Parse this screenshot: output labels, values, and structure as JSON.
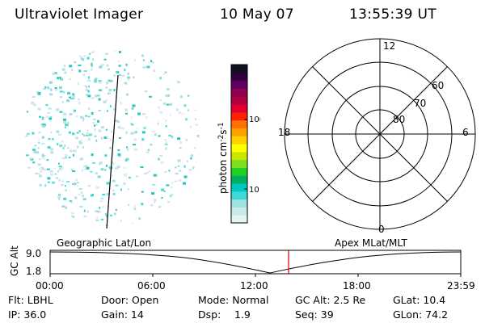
{
  "header": {
    "instrument": "Ultraviolet Imager",
    "date": "10 May 07",
    "time": "13:55:39 UT"
  },
  "colorbar": {
    "label": "photon cm-2s-1",
    "ticks": [
      "100",
      "10"
    ],
    "colors": [
      "#e8f4f4",
      "#c8eaea",
      "#9fe0e0",
      "#40d8d8",
      "#00c8c0",
      "#00b060",
      "#20d020",
      "#80e020",
      "#c8e800",
      "#ffff00",
      "#ffd000",
      "#ffa000",
      "#ff7000",
      "#ff2000",
      "#e00030",
      "#b00040",
      "#900050",
      "#600060",
      "#300040",
      "#101020"
    ]
  },
  "left_panel": {
    "label": "Geographic Lat/Lon"
  },
  "polar_plot": {
    "label": "Apex MLat/MLT",
    "mlt_labels": {
      "top": "12",
      "left": "18",
      "right": "6",
      "bottom": "0"
    },
    "lat_labels": [
      "60",
      "70",
      "80"
    ]
  },
  "timeline": {
    "axis_label": "GC Alt",
    "y_ticks": [
      "9.0",
      "1.8"
    ],
    "x_ticks": [
      "00:00",
      "06:00",
      "12:00",
      "18:00",
      "23:59"
    ],
    "marker_time": "13:55:39",
    "marker_color": "#cc0000"
  },
  "footer": {
    "flt": "Flt: LBHL",
    "door": "Door: Open",
    "mode": "Mode: Normal",
    "gc_alt": "GC Alt: 2.5 Re",
    "glat": "GLat: 10.4",
    "ip": "IP: 36.0",
    "gain": "Gain: 14",
    "dsp_label": "Dsp:",
    "dsp_value": "1.9",
    "seq": "Seq: 39",
    "glon": "GLon: 74.2"
  }
}
